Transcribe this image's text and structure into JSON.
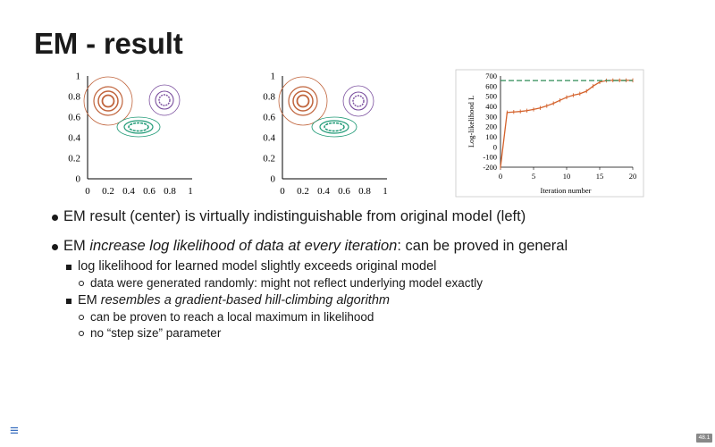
{
  "slide": {
    "title": "EM - result",
    "menu_icon": "hamburger-menu-icon",
    "page_number": "48.1"
  },
  "plots": {
    "left_ticks": [
      "0",
      "0.2",
      "0.4",
      "0.6",
      "0.8",
      "1"
    ],
    "bottom_ticks": [
      "0",
      "0.2",
      "0.4",
      "0.6",
      "0.8",
      "1"
    ]
  },
  "bullets": {
    "b1": "EM result (center) is virtually indistinguishable from original model (left)",
    "b2_pre": "EM ",
    "b2_em": "increase log likelihood of data at every iteration",
    "b2_post": ": can be proved in general",
    "b2_1": "log likelihood for learned model slightly exceeds original model",
    "b2_1_1": "data were generated randomly: might not reflect underlying model exactly",
    "b2_2_pre": "EM ",
    "b2_2_em": "resembles a gradient-based hill-climbing algorithm",
    "b2_2_1": "can be proven to reach a local maximum in likelihood",
    "b2_2_2": "no “step size” parameter"
  },
  "chart_data": {
    "type": "line",
    "xlabel": "Iteration number",
    "ylabel": "Log-likelihood L",
    "xlim": [
      0,
      20
    ],
    "ylim": [
      -200,
      700
    ],
    "xticks": [
      "0",
      "5",
      "10",
      "15",
      "20"
    ],
    "yticks": [
      "-200",
      "-100",
      "0",
      "100",
      "200",
      "300",
      "400",
      "500",
      "600",
      "700"
    ],
    "series": [
      {
        "color": "#d4622c",
        "style": "solid-with-markers",
        "x": [
          0,
          1,
          2,
          3,
          4,
          5,
          6,
          7,
          8,
          9,
          10,
          11,
          12,
          13,
          14,
          15,
          16,
          17,
          18,
          19,
          20
        ],
        "y": [
          -200,
          340,
          345,
          350,
          358,
          370,
          385,
          405,
          430,
          460,
          490,
          510,
          525,
          550,
          600,
          640,
          655,
          657,
          657,
          657,
          657
        ]
      },
      {
        "color": "#2e8b57",
        "style": "dashed",
        "x": [
          0,
          20
        ],
        "y": [
          655,
          655
        ]
      }
    ]
  }
}
